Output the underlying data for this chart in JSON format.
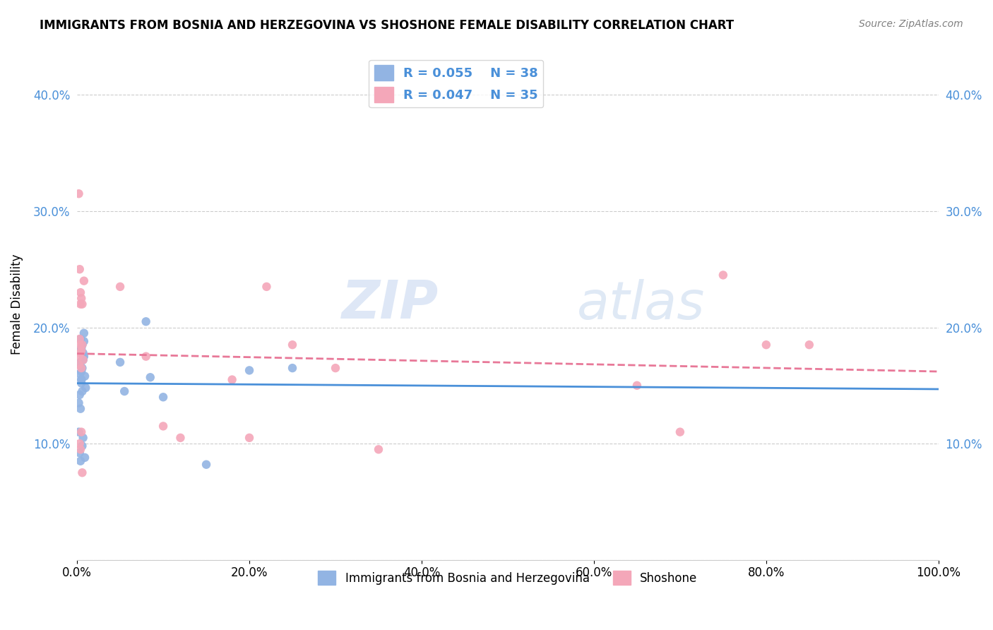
{
  "title": "IMMIGRANTS FROM BOSNIA AND HERZEGOVINA VS SHOSHONE FEMALE DISABILITY CORRELATION CHART",
  "source": "Source: ZipAtlas.com",
  "ylabel": "Female Disability",
  "yticks": [
    0.0,
    0.1,
    0.2,
    0.3,
    0.4
  ],
  "ytick_labels": [
    "",
    "10.0%",
    "20.0%",
    "30.0%",
    "40.0%"
  ],
  "xticks": [
    0.0,
    0.2,
    0.4,
    0.6,
    0.8,
    1.0
  ],
  "xtick_labels": [
    "0.0%",
    "20.0%",
    "40.0%",
    "60.0%",
    "80.0%",
    "100.0%"
  ],
  "xlim": [
    0.0,
    1.0
  ],
  "ylim": [
    0.0,
    0.44
  ],
  "legend_r1": "R = 0.055",
  "legend_n1": "N = 38",
  "legend_r2": "R = 0.047",
  "legend_n2": "N = 35",
  "blue_color": "#92b4e3",
  "pink_color": "#f4a7b9",
  "blue_line_color": "#4a90d9",
  "pink_line_color": "#e87898",
  "watermark_zip": "ZIP",
  "watermark_atlas": "atlas",
  "blue_scatter_x": [
    0.005,
    0.008,
    0.003,
    0.006,
    0.004,
    0.007,
    0.002,
    0.009,
    0.005,
    0.003,
    0.006,
    0.004,
    0.008,
    0.007,
    0.005,
    0.01,
    0.003,
    0.006,
    0.004,
    0.002,
    0.007,
    0.005,
    0.008,
    0.003,
    0.006,
    0.009,
    0.004,
    0.005,
    0.007,
    0.002,
    0.05,
    0.055,
    0.08,
    0.085,
    0.1,
    0.15,
    0.2,
    0.25
  ],
  "blue_scatter_y": [
    0.155,
    0.175,
    0.16,
    0.165,
    0.17,
    0.172,
    0.168,
    0.158,
    0.162,
    0.18,
    0.185,
    0.19,
    0.195,
    0.178,
    0.152,
    0.148,
    0.142,
    0.145,
    0.13,
    0.135,
    0.173,
    0.182,
    0.188,
    0.092,
    0.098,
    0.088,
    0.085,
    0.155,
    0.105,
    0.11,
    0.17,
    0.145,
    0.205,
    0.157,
    0.14,
    0.082,
    0.163,
    0.165
  ],
  "pink_scatter_x": [
    0.002,
    0.003,
    0.005,
    0.004,
    0.006,
    0.003,
    0.002,
    0.004,
    0.005,
    0.003,
    0.006,
    0.004,
    0.008,
    0.002,
    0.005,
    0.007,
    0.004,
    0.003,
    0.006,
    0.005,
    0.05,
    0.08,
    0.1,
    0.12,
    0.18,
    0.2,
    0.22,
    0.25,
    0.3,
    0.35,
    0.65,
    0.7,
    0.75,
    0.8,
    0.85
  ],
  "pink_scatter_y": [
    0.315,
    0.25,
    0.225,
    0.23,
    0.185,
    0.19,
    0.175,
    0.178,
    0.18,
    0.185,
    0.22,
    0.22,
    0.24,
    0.168,
    0.165,
    0.172,
    0.095,
    0.1,
    0.075,
    0.11,
    0.235,
    0.175,
    0.115,
    0.105,
    0.155,
    0.105,
    0.235,
    0.185,
    0.165,
    0.095,
    0.15,
    0.11,
    0.245,
    0.185,
    0.185
  ]
}
